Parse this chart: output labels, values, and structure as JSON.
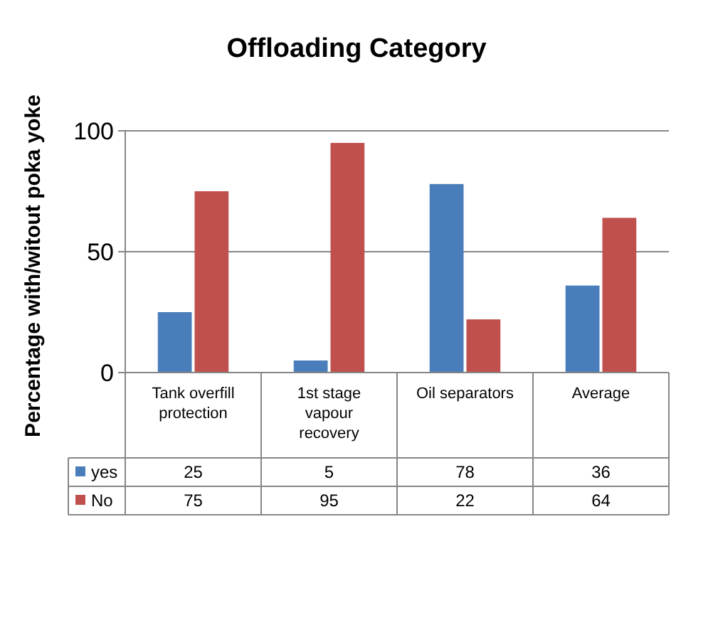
{
  "chart_data": {
    "type": "bar",
    "title": "Offloading Category",
    "ylabel": "Percentage with/witout poka yoke",
    "categories": [
      "Tank overfill protection",
      "1st stage vapour recovery",
      "Oil separators",
      "Average"
    ],
    "series": [
      {
        "name": "yes",
        "color": "#4a7ebb",
        "values": [
          25,
          5,
          78,
          36
        ]
      },
      {
        "name": "No",
        "color": "#c0504d",
        "values": [
          75,
          95,
          22,
          64
        ]
      }
    ],
    "ylim": [
      0,
      100
    ],
    "yticks": [
      0,
      50,
      100
    ],
    "grid": "y",
    "legend": "bottom",
    "data_labels": true
  }
}
